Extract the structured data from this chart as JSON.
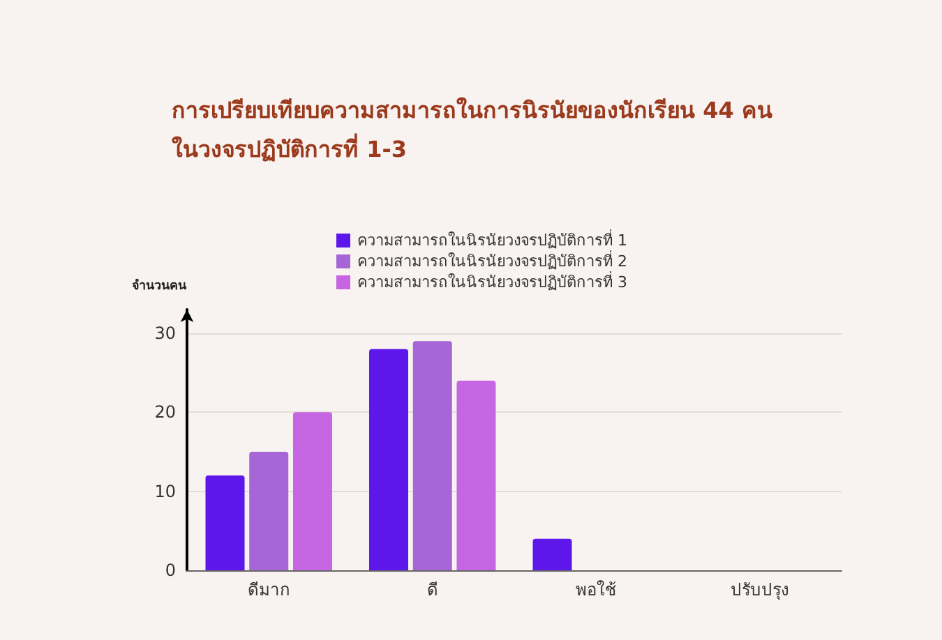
{
  "chart_data": {
    "type": "bar",
    "title": "การเปรียบเทียบความสามารถในการนิรนัยของนักเรียน 44 คน\nในวงจรปฏิบัติการที่ 1-3",
    "ylabel": "จำนวนคน",
    "categories": [
      "ดีมาก",
      "ดี",
      "พอใช้",
      "ปรับปรุง"
    ],
    "series": [
      {
        "name": "ความสามารถในนิรนัยวงจรปฏิบัติการที่ 1",
        "color": "#5e17eb",
        "values": [
          12,
          28,
          4,
          0
        ]
      },
      {
        "name": "ความสามารถในนิรนัยวงจรปฏิบัติการที่ 2",
        "color": "#a666d6",
        "values": [
          15,
          29,
          0,
          0
        ]
      },
      {
        "name": "ความสามารถในนิรนัยวงจรปฏิบัติการที่ 3",
        "color": "#c766e2",
        "values": [
          20,
          24,
          0,
          0
        ]
      }
    ],
    "ylim": [
      0,
      33
    ],
    "yticks": [
      0,
      10,
      20,
      30
    ],
    "grid": "y",
    "legend": "top"
  }
}
